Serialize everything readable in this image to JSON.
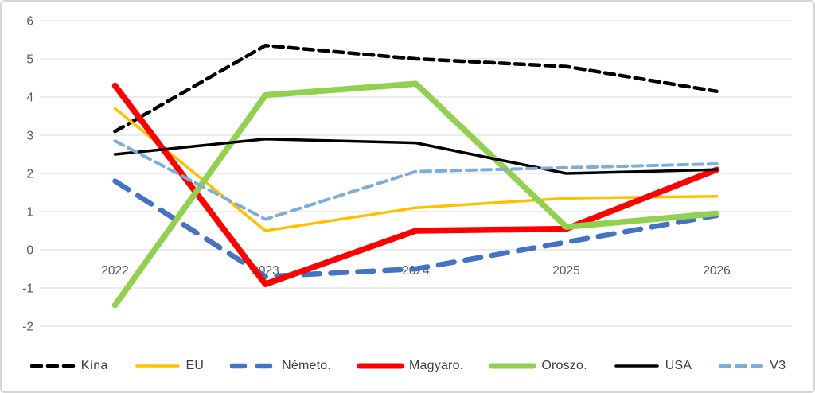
{
  "chart_data": {
    "type": "line",
    "title": "",
    "xlabel": "",
    "ylabel": "",
    "categories": [
      "2022",
      "2023",
      "2024",
      "2025",
      "2026"
    ],
    "y_ticks": [
      "6",
      "5",
      "4",
      "3",
      "2",
      "1",
      "0",
      "-1",
      "-2"
    ],
    "ylim": [
      -2,
      6
    ],
    "grid": true,
    "legend_position": "bottom",
    "series": [
      {
        "name": "Kína",
        "color": "#000000",
        "line_style": "dashed",
        "width": 4.5,
        "dash": "12 7",
        "values": [
          3.1,
          5.35,
          5.0,
          4.8,
          4.15
        ]
      },
      {
        "name": "EU",
        "color": "#FFC000",
        "line_style": "solid",
        "width": 3.5,
        "dash": null,
        "values": [
          3.7,
          0.5,
          1.1,
          1.35,
          1.4
        ]
      },
      {
        "name": "Németo.",
        "color": "#4472C4",
        "line_style": "dashed",
        "width": 6.5,
        "dash": "20 14",
        "values": [
          1.8,
          -0.7,
          -0.5,
          0.2,
          0.9
        ]
      },
      {
        "name": "Magyaro.",
        "color": "#FF0000",
        "line_style": "solid",
        "width": 7.5,
        "dash": null,
        "values": [
          4.3,
          -0.9,
          0.5,
          0.55,
          2.1
        ]
      },
      {
        "name": "Oroszo.",
        "color": "#92D050",
        "line_style": "solid",
        "width": 7.5,
        "dash": null,
        "values": [
          -1.45,
          4.05,
          4.35,
          0.6,
          0.95
        ]
      },
      {
        "name": "USA",
        "color": "#000000",
        "line_style": "solid",
        "width": 3.5,
        "dash": null,
        "values": [
          2.5,
          2.9,
          2.8,
          2.0,
          2.1
        ]
      },
      {
        "name": "V3",
        "color": "#7EADDD",
        "line_style": "dashed",
        "width": 4.0,
        "dash": "12 7",
        "values": [
          2.85,
          0.8,
          2.05,
          2.15,
          2.25
        ]
      }
    ],
    "colors": {
      "gridline": "#D9D9D9",
      "axis_text": "#595959",
      "legend_text": "#404040",
      "background": "#FFFFFF",
      "frame_border": "#D6D6D6"
    }
  }
}
